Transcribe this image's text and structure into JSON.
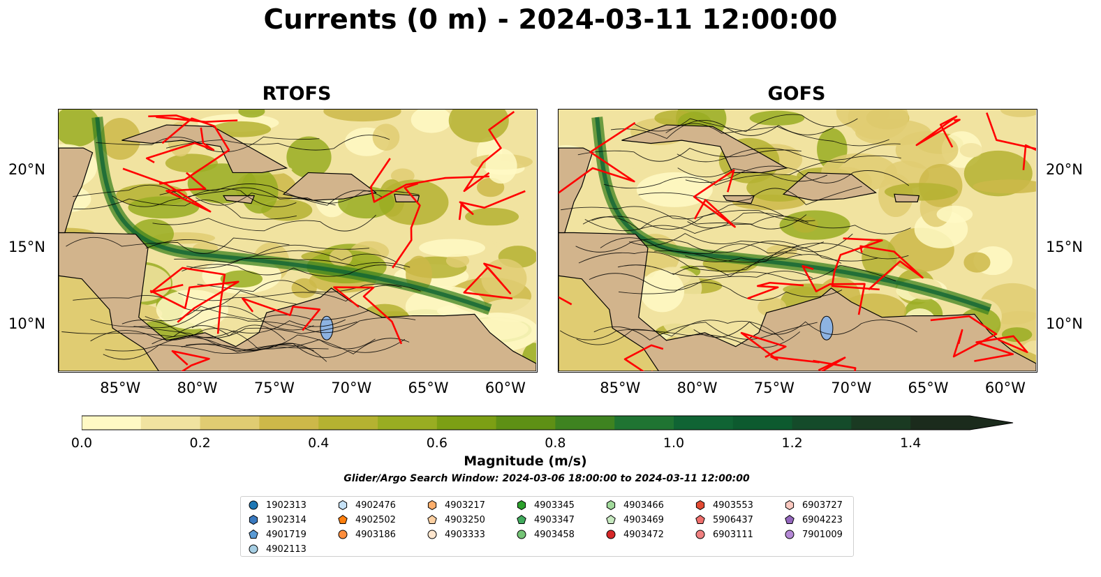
{
  "title": "Currents (0 m) - 2024-03-11 12:00:00",
  "panels": [
    {
      "name": "RTOFS"
    },
    {
      "name": "GOFS"
    }
  ],
  "lon_ticks": [
    "85°W",
    "80°W",
    "75°W",
    "70°W",
    "65°W",
    "60°W"
  ],
  "lat_ticks": [
    "20°N",
    "15°N",
    "10°N"
  ],
  "map_extent": {
    "lon": [
      -89,
      -58
    ],
    "lat": [
      7,
      24
    ]
  },
  "colors": {
    "land": "#d2b48c",
    "contour": "#ff0000",
    "streamline": "#000000",
    "lake": "#8db3e2"
  },
  "colorbar": {
    "label": "Magnitude (m/s)",
    "ticks": [
      "0.0",
      "0.2",
      "0.4",
      "0.6",
      "0.8",
      "1.0",
      "1.2",
      "1.4"
    ],
    "range": [
      0,
      1.5
    ],
    "extend": "max",
    "levels": [
      "#fff9c4",
      "#f1e3a0",
      "#e0cc72",
      "#cdb849",
      "#b5b231",
      "#99ad22",
      "#7c9f14",
      "#5e9015",
      "#3e8320",
      "#1f7432",
      "#106434",
      "#0d5a2f",
      "#144b2a",
      "#1a3a22",
      "#1b2b1c"
    ]
  },
  "search_window": "Glider/Argo Search Window: 2024-03-06 18:00:00 to 2024-03-11 12:00:00",
  "legend": [
    {
      "id": "1902313",
      "color": "#1f77b4",
      "shape": "circle"
    },
    {
      "id": "1902314",
      "color": "#3a7ac0",
      "shape": "hexagon"
    },
    {
      "id": "4901719",
      "color": "#5b9bd5",
      "shape": "pentagon"
    },
    {
      "id": "4902113",
      "color": "#a6cee3",
      "shape": "circle"
    },
    {
      "id": "4902476",
      "color": "#c6e2f7",
      "shape": "hexagon"
    },
    {
      "id": "4902502",
      "color": "#ff7f0e",
      "shape": "pentagon"
    },
    {
      "id": "4903186",
      "color": "#fd8d3c",
      "shape": "circle"
    },
    {
      "id": "4903217",
      "color": "#fdae6b",
      "shape": "hexagon"
    },
    {
      "id": "4903250",
      "color": "#fdd0a2",
      "shape": "pentagon"
    },
    {
      "id": "4903333",
      "color": "#fee6ce",
      "shape": "circle"
    },
    {
      "id": "4903345",
      "color": "#2ca02c",
      "shape": "hexagon"
    },
    {
      "id": "4903347",
      "color": "#41ab5d",
      "shape": "pentagon"
    },
    {
      "id": "4903458",
      "color": "#74c476",
      "shape": "circle"
    },
    {
      "id": "4903466",
      "color": "#a1d99b",
      "shape": "hexagon"
    },
    {
      "id": "4903469",
      "color": "#c7e9c0",
      "shape": "pentagon"
    },
    {
      "id": "4903472",
      "color": "#d62728",
      "shape": "circle"
    },
    {
      "id": "4903553",
      "color": "#e34a33",
      "shape": "hexagon"
    },
    {
      "id": "5906437",
      "color": "#ef6f6c",
      "shape": "pentagon"
    },
    {
      "id": "6903111",
      "color": "#f08080",
      "shape": "circle"
    },
    {
      "id": "6903727",
      "color": "#fbc9c0",
      "shape": "hexagon"
    },
    {
      "id": "6904223",
      "color": "#9467bd",
      "shape": "pentagon"
    },
    {
      "id": "7901009",
      "color": "#b589d6",
      "shape": "circle"
    }
  ]
}
